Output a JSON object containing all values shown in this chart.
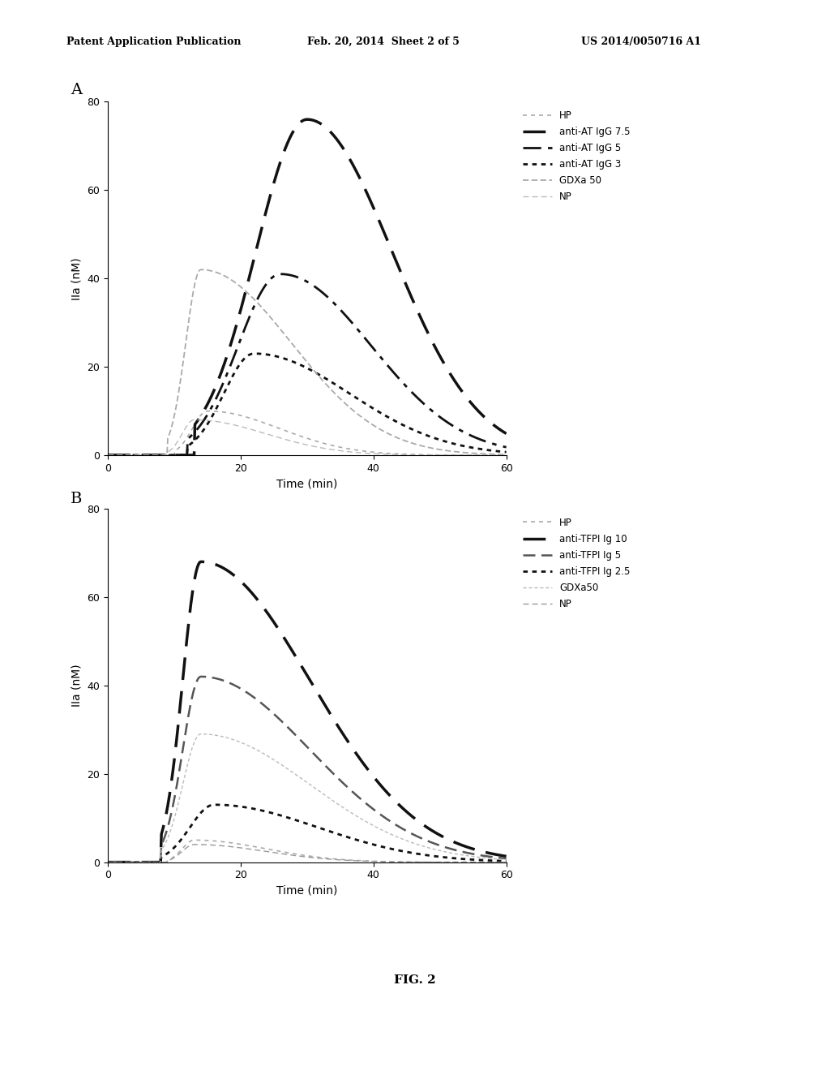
{
  "header_left": "Patent Application Publication",
  "header_mid": "Feb. 20, 2014  Sheet 2 of 5",
  "header_right": "US 2014/0050716 A1",
  "panel_A": {
    "label": "A",
    "xlabel": "Time (min)",
    "ylabel": "IIa (nM)",
    "xlim": [
      0,
      60
    ],
    "ylim": [
      0,
      80
    ],
    "xticks": [
      0,
      20,
      40,
      60
    ],
    "yticks": [
      0,
      20,
      40,
      60,
      80
    ]
  },
  "panel_B": {
    "label": "B",
    "xlabel": "Time (min)",
    "ylabel": "IIa (nM)",
    "xlim": [
      0,
      60
    ],
    "ylim": [
      0,
      80
    ],
    "xticks": [
      0,
      20,
      40,
      60
    ],
    "yticks": [
      0,
      20,
      40,
      60,
      80
    ]
  },
  "fig2_label": "FIG. 2",
  "bg_color": "#ffffff"
}
